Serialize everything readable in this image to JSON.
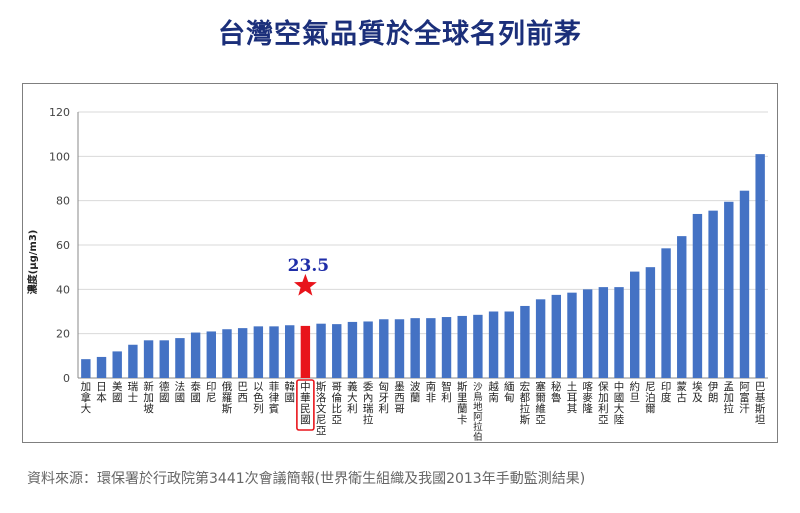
{
  "title": "台灣空氣品質於全球名列前茅",
  "source": "資料來源：環保署於行政院第3441次會議簡報(世界衛生組織及我國2013年手動監測結果)",
  "chart_data": {
    "type": "bar",
    "ylabel": "濃度(μg/m3)",
    "ylim": [
      0,
      120
    ],
    "yticks": [
      0,
      20,
      40,
      60,
      80,
      100,
      120
    ],
    "grid": true,
    "bar_color": "#4472c4",
    "highlight_color": "#e8141b",
    "highlight_category": "中華民國",
    "annotation": {
      "text": "23.5",
      "category": "中華民國",
      "marker": "red-star-icon",
      "color": "#1f2ea8"
    },
    "categories": [
      "加拿大",
      "日本",
      "美國",
      "瑞士",
      "新加坡",
      "德國",
      "法國",
      "泰國",
      "印尼",
      "俄羅斯",
      "巴西",
      "以色列",
      "菲律賓",
      "韓國",
      "中華民國",
      "斯洛文尼亞",
      "哥倫比亞",
      "義大利",
      "委內瑞拉",
      "匈牙利",
      "墨西哥",
      "波蘭",
      "南非",
      "智利",
      "斯里蘭卡",
      "沙烏地阿拉伯",
      "越南",
      "緬甸",
      "宏都拉斯",
      "塞爾維亞",
      "秘魯",
      "土耳其",
      "喀麥隆",
      "保加利亞",
      "中國大陸",
      "約旦",
      "尼泊爾",
      "印度",
      "蒙古",
      "埃及",
      "伊朗",
      "孟加拉",
      "阿富汗",
      "巴基斯坦"
    ],
    "values": [
      8.5,
      9.5,
      12,
      15,
      17,
      17,
      18,
      20.5,
      21,
      22,
      22.5,
      23.3,
      23.3,
      23.8,
      23.5,
      24.5,
      24.3,
      25.3,
      25.5,
      26.5,
      26.5,
      27,
      27,
      27.5,
      28,
      28.5,
      30,
      30,
      32.5,
      35.5,
      37.5,
      38.5,
      40,
      41,
      41,
      48,
      50,
      58.5,
      64,
      74,
      75.5,
      79.5,
      84.5,
      101
    ]
  }
}
